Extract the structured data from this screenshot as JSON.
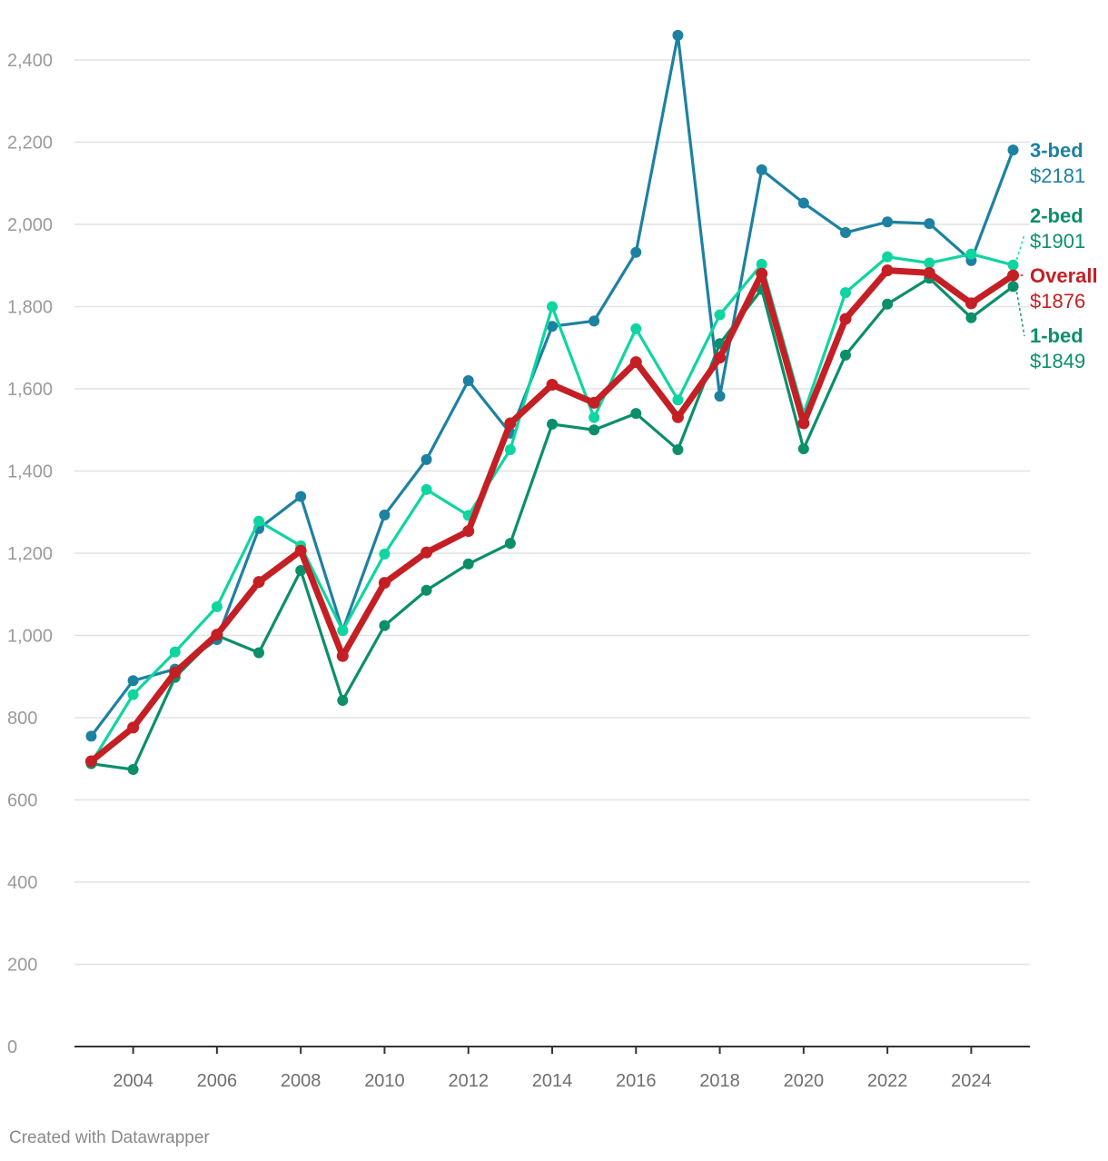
{
  "chart_data": {
    "type": "line",
    "title": "",
    "xlabel": "",
    "ylabel": "",
    "x": [
      2003,
      2004,
      2005,
      2006,
      2007,
      2008,
      2009,
      2010,
      2011,
      2012,
      2013,
      2014,
      2015,
      2016,
      2017,
      2018,
      2019,
      2020,
      2021,
      2022,
      2023,
      2024,
      2025
    ],
    "xlim": [
      2002.6,
      2025.4
    ],
    "ylim": [
      0,
      2400
    ],
    "y_ticks": [
      {
        "value": 0,
        "label": "0"
      },
      {
        "value": 200,
        "label": "200"
      },
      {
        "value": 400,
        "label": "400"
      },
      {
        "value": 600,
        "label": "600"
      },
      {
        "value": 800,
        "label": "800"
      },
      {
        "value": 1000,
        "label": "1,000"
      },
      {
        "value": 1200,
        "label": "1,200"
      },
      {
        "value": 1400,
        "label": "1,400"
      },
      {
        "value": 1600,
        "label": "1,600"
      },
      {
        "value": 1800,
        "label": "1,800"
      },
      {
        "value": 2000,
        "label": "2,000"
      },
      {
        "value": 2200,
        "label": "2,200"
      },
      {
        "value": 2400,
        "label": "2,400"
      }
    ],
    "x_ticks": [
      {
        "value": 2004,
        "label": "2004"
      },
      {
        "value": 2006,
        "label": "2006"
      },
      {
        "value": 2008,
        "label": "2008"
      },
      {
        "value": 2010,
        "label": "2010"
      },
      {
        "value": 2012,
        "label": "2012"
      },
      {
        "value": 2014,
        "label": "2014"
      },
      {
        "value": 2016,
        "label": "2016"
      },
      {
        "value": 2018,
        "label": "2018"
      },
      {
        "value": 2020,
        "label": "2020"
      },
      {
        "value": 2022,
        "label": "2022"
      },
      {
        "value": 2024,
        "label": "2024"
      }
    ],
    "grid": true,
    "series": [
      {
        "key": "3-bed",
        "name": "3-bed",
        "end_value": "$2181",
        "color": "#1d81a2",
        "line_width": "normal",
        "values": [
          755,
          890,
          918,
          990,
          1260,
          1338,
          1012,
          1293,
          1428,
          1620,
          1492,
          1752,
          1765,
          1932,
          2460,
          1582,
          2133,
          2052,
          1980,
          2006,
          2002,
          1912,
          2181
        ]
      },
      {
        "key": "2-bed",
        "name": "2-bed",
        "end_value": "$1901",
        "color": "#0fd5a0",
        "label_color": "#0b8f6b",
        "line_width": "normal",
        "values": [
          690,
          856,
          960,
          1070,
          1278,
          1218,
          1012,
          1198,
          1355,
          1292,
          1452,
          1800,
          1530,
          1746,
          1573,
          1780,
          1903,
          1540,
          1834,
          1921,
          1906,
          1928,
          1901
        ]
      },
      {
        "key": "1-bed",
        "name": "1-bed",
        "end_value": "$1849",
        "color": "#0a8f6a",
        "line_width": "normal",
        "values": [
          688,
          674,
          898,
          1000,
          958,
          1158,
          842,
          1024,
          1110,
          1174,
          1224,
          1514,
          1500,
          1540,
          1452,
          1710,
          1842,
          1454,
          1682,
          1806,
          1869,
          1773,
          1849
        ]
      },
      {
        "key": "overall",
        "name": "Overall",
        "end_value": "$1876",
        "color": "#c41f24",
        "line_width": "thick",
        "values": [
          694,
          776,
          910,
          1002,
          1130,
          1206,
          950,
          1128,
          1202,
          1254,
          1516,
          1610,
          1566,
          1665,
          1531,
          1676,
          1880,
          1516,
          1770,
          1888,
          1882,
          1808,
          1876
        ]
      }
    ],
    "end_labels": [
      "3-bed",
      "2-bed",
      "overall",
      "1-bed"
    ]
  },
  "footer": {
    "credit": "Created with Datawrapper"
  }
}
